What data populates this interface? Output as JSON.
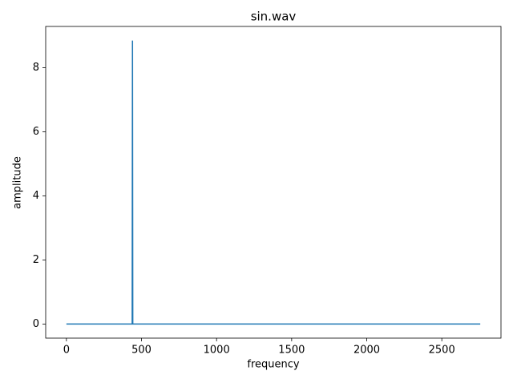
{
  "chart_data": {
    "type": "line",
    "title": "sin.wav",
    "x_label": "frequency",
    "y_label": "amplitude",
    "x": [
      0,
      438,
      440,
      442,
      2756
    ],
    "series": [
      {
        "name": "amplitude",
        "color": "#1f77b4",
        "values": [
          0,
          0,
          8.85,
          0,
          0
        ]
      }
    ],
    "xlim": [
      -138,
      2894
    ],
    "xticks": [
      0,
      500,
      1000,
      1500,
      2000,
      2500
    ],
    "ylim": [
      -0.44,
      9.29
    ],
    "yticks": [
      0,
      2,
      4,
      6,
      8
    ],
    "grid": false
  }
}
